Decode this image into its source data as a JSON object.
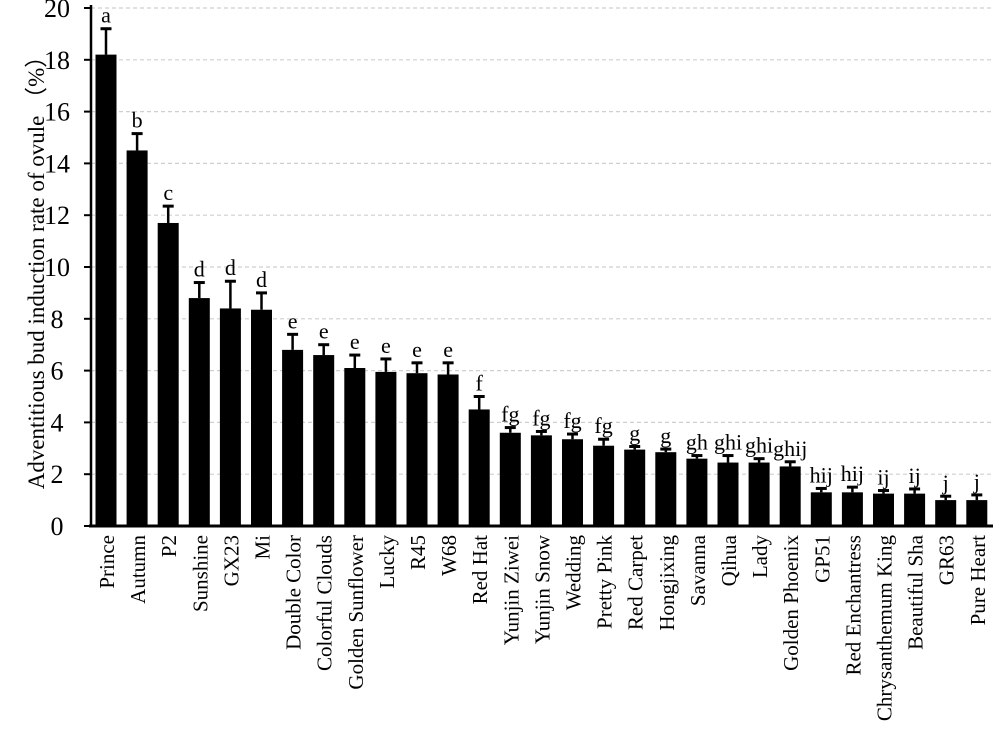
{
  "figure": {
    "background_color": "#ffffff",
    "title": ""
  },
  "chart_data": {
    "type": "bar",
    "title": "",
    "xlabel": "",
    "ylabel": "Adventitious bud induction rate of ovule （%）",
    "ylim": [
      0,
      20
    ],
    "yticks": [
      0,
      2,
      4,
      6,
      8,
      10,
      12,
      14,
      16,
      18,
      20
    ],
    "grid": "horizontal dashed gridlines at every 2 units",
    "legend_position": "none",
    "bar_color": "#000000",
    "gridline_color": "#cfcfcf",
    "axis_color": "#000000",
    "error_bar_style": "upper whisker with cap",
    "categories": [
      "Prince",
      "Autumn",
      "P2",
      "Sunshine",
      "GX23",
      "Mi",
      "Double Color",
      "Colorful Clouds",
      "Golden Sunflower",
      "Lucky",
      "R45",
      "W68",
      "Red Hat",
      "Yunjin Ziwei",
      "Yunjin Snow",
      "Wedding",
      "Pretty Pink",
      "Red Carpet",
      "Hongjixing",
      "Savanna",
      "Qihua",
      "Lady",
      "Golden Phoenix",
      "GP51",
      "Red Enchantress",
      "Chrysanthemum King",
      "Beautiful Sha",
      "GR63",
      "Pure Heart"
    ],
    "values": [
      18.2,
      14.5,
      11.7,
      8.8,
      8.4,
      8.35,
      6.8,
      6.6,
      6.1,
      5.95,
      5.9,
      5.85,
      4.5,
      3.6,
      3.5,
      3.35,
      3.1,
      2.95,
      2.85,
      2.6,
      2.45,
      2.45,
      2.3,
      1.3,
      1.3,
      1.25,
      1.25,
      1.0,
      1.0
    ],
    "errors": [
      1.0,
      0.65,
      0.65,
      0.6,
      1.05,
      0.65,
      0.6,
      0.4,
      0.5,
      0.5,
      0.4,
      0.45,
      0.5,
      0.2,
      0.15,
      0.2,
      0.25,
      0.12,
      0.12,
      0.12,
      0.27,
      0.15,
      0.18,
      0.15,
      0.2,
      0.12,
      0.18,
      0.15,
      0.2
    ],
    "sig_letters": [
      "a",
      "b",
      "c",
      "d",
      "d",
      "d",
      "e",
      "e",
      "e",
      "e",
      "e",
      "e",
      "f",
      "fg",
      "fg",
      "fg",
      "fg",
      "g",
      "g",
      "gh",
      "ghi",
      "ghi",
      "ghij",
      "hij",
      "hij",
      "ij",
      "ij",
      "j",
      "j"
    ]
  }
}
